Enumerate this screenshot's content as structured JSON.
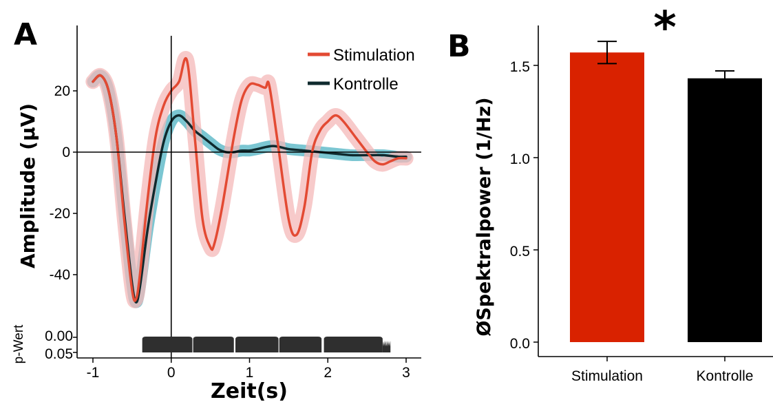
{
  "colors": {
    "stimulation": "#e34a33",
    "stimulation_band": "#f4b8b8",
    "kontrolle": "#0f2a2e",
    "kontrolle_band": "#4fb3c3",
    "bar_stimulation": "#d92200",
    "bar_kontrolle": "#000000",
    "pvalue_fill": "#2f2f2f"
  },
  "chart_data": [
    {
      "type": "line",
      "panel_label": "A",
      "xlabel": "Zeit(s)",
      "ylabel": "Amplitude (µV)",
      "xlim": [
        -1.1,
        3.1
      ],
      "ylim": [
        -52,
        40
      ],
      "x_ticks": [
        -1,
        0,
        1,
        2,
        3
      ],
      "x_tick_labels": [
        "-1",
        "0",
        "1",
        "2",
        "3"
      ],
      "y_ticks": [
        20,
        0,
        -20,
        -40
      ],
      "y_tick_labels": [
        "20",
        "0",
        "-20",
        "-40"
      ],
      "vertical_reference_x": 0,
      "horizontal_reference_y": 0,
      "legend_position": "top-right",
      "series": [
        {
          "name": "Stimulation",
          "x": [
            -1.0,
            -0.9,
            -0.8,
            -0.7,
            -0.6,
            -0.5,
            -0.45,
            -0.4,
            -0.3,
            -0.2,
            -0.1,
            0.0,
            0.1,
            0.2,
            0.3,
            0.4,
            0.5,
            0.55,
            0.65,
            0.8,
            0.9,
            1.0,
            1.1,
            1.2,
            1.25,
            1.35,
            1.5,
            1.6,
            1.7,
            1.8,
            1.9,
            2.0,
            2.1,
            2.2,
            2.35,
            2.5,
            2.6,
            2.7,
            2.8,
            2.9,
            3.0
          ],
          "y": [
            23,
            25,
            20,
            5,
            -22,
            -45,
            -48,
            -40,
            -15,
            5,
            15,
            20,
            23,
            30,
            5,
            -22,
            -31,
            -30,
            -18,
            5,
            17,
            22,
            22,
            21,
            22,
            5,
            -22,
            -27,
            -18,
            0,
            7,
            10,
            12,
            10,
            5,
            0,
            -3,
            -4,
            -3,
            -2,
            -2
          ],
          "error_band": 2
        },
        {
          "name": "Kontrolle",
          "x": [
            -1.0,
            -0.9,
            -0.8,
            -0.7,
            -0.6,
            -0.5,
            -0.45,
            -0.4,
            -0.3,
            -0.2,
            -0.1,
            0.0,
            0.1,
            0.2,
            0.3,
            0.4,
            0.5,
            0.6,
            0.7,
            0.8,
            0.9,
            1.0,
            1.1,
            1.3,
            1.5,
            1.7,
            1.9,
            2.1,
            2.3,
            2.5,
            2.7,
            2.9,
            3.0
          ],
          "y": [
            23,
            25,
            20,
            5,
            -20,
            -43,
            -49,
            -44,
            -25,
            -10,
            3,
            10,
            12,
            10,
            7,
            5,
            3,
            1,
            0,
            0,
            0.5,
            0.5,
            1,
            2,
            1,
            0.5,
            0,
            -0.5,
            -1,
            -1,
            -1,
            -1.5,
            -1.5
          ],
          "error_band": 1.5
        }
      ]
    },
    {
      "type": "area",
      "ylabel": "p-Wert",
      "y_tick_labels": [
        "0.00",
        "0.05"
      ],
      "segments": [
        [
          -0.37,
          0.27
        ],
        [
          0.28,
          0.8
        ],
        [
          0.82,
          1.37
        ],
        [
          1.38,
          1.92
        ],
        [
          1.95,
          2.7
        ]
      ],
      "tail": [
        2.7,
        2.8
      ]
    },
    {
      "type": "bar",
      "panel_label": "B",
      "ylabel": "ØSpektralpower (1/Hz)",
      "categories": [
        "Stimulation",
        "Kontrolle"
      ],
      "values": [
        1.57,
        1.43
      ],
      "errors": [
        0.06,
        0.04
      ],
      "ylim": [
        0,
        1.75
      ],
      "y_ticks": [
        0.0,
        0.5,
        1.0,
        1.5
      ],
      "y_tick_labels": [
        "0.0",
        "0.5",
        "1.0",
        "1.5"
      ],
      "annotation": "*"
    }
  ]
}
